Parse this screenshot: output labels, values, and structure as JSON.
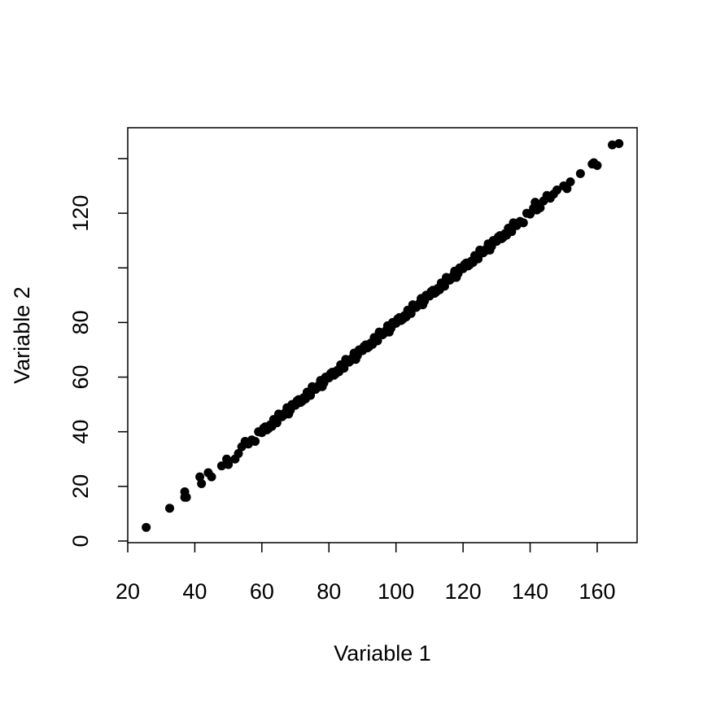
{
  "chart_data": {
    "type": "scatter",
    "x_label": "Variable 1",
    "y_label": "Variable 2",
    "xlim": [
      20,
      171.9
    ],
    "ylim": [
      -0.6,
      151.3
    ],
    "xticks": [
      20,
      40,
      60,
      80,
      100,
      120,
      140,
      160
    ],
    "yticks": [
      0,
      20,
      40,
      60,
      80,
      {
        "value": 100,
        "label": null
      },
      120,
      {
        "value": 140,
        "label": null
      }
    ],
    "color": "#000000",
    "x": [
      25.5,
      32.5,
      37,
      37,
      37.5,
      41.5,
      42,
      44,
      45,
      48,
      49.5,
      50,
      52,
      53,
      54,
      55,
      56,
      57,
      58,
      59,
      60,
      61,
      62,
      63,
      64,
      65,
      66,
      67,
      68,
      69,
      70,
      71,
      72,
      73,
      74,
      75,
      76,
      77,
      78,
      79,
      80,
      81,
      82,
      83,
      84,
      85,
      86,
      87,
      88,
      89,
      90,
      91,
      92,
      93,
      94,
      95,
      96,
      97,
      98,
      99,
      100,
      101,
      102,
      103,
      104,
      105,
      106,
      107,
      108,
      109,
      110,
      111,
      112,
      113,
      114,
      115,
      116,
      117,
      118,
      119,
      120,
      121,
      122,
      123,
      124,
      125,
      126,
      127,
      128,
      129,
      130,
      131,
      132,
      133,
      134,
      135,
      136,
      137,
      138,
      139,
      140,
      141,
      142,
      143,
      144,
      145,
      146,
      147,
      148,
      60.5,
      61.5,
      62.5,
      63.5,
      64.5,
      65.5,
      66.5,
      67.5,
      68.5,
      69.5,
      70.5,
      71.5,
      72.5,
      73.5,
      74.5,
      75.5,
      76.5,
      77.5,
      78.5,
      79.5,
      80.5,
      81.5,
      82.5,
      83.5,
      84.5,
      85.5,
      86.5,
      87.5,
      88.5,
      89.5,
      90.5,
      91.5,
      92.5,
      93.5,
      94.5,
      95.5,
      96.5,
      97.5,
      98.5,
      99.5,
      100.5,
      101.5,
      102.5,
      103.5,
      104.5,
      105.5,
      106.5,
      107.5,
      108.5,
      109.5,
      110.5,
      111.5,
      112.5,
      113.5,
      114.5,
      115.5,
      116.5,
      117.5,
      118.5,
      119.5,
      120.5,
      121.5,
      122.5,
      123.5,
      124.5,
      125.5,
      126.5,
      127.5,
      128.5,
      129.5,
      130.5,
      131.5,
      132.5,
      133.5,
      134.5,
      141.5,
      150,
      151,
      152,
      155,
      158.5,
      159,
      160,
      164.5,
      166.5
    ],
    "y": [
      5,
      12,
      18,
      16,
      16,
      23.5,
      21,
      25,
      23.5,
      27.5,
      30,
      28,
      30,
      32,
      34.5,
      36.5,
      35.5,
      37,
      36.5,
      40,
      39.7,
      41.8,
      41.2,
      42,
      44.5,
      46.5,
      45.5,
      47,
      46.5,
      50,
      49.7,
      51.8,
      51.2,
      52,
      54.5,
      56.5,
      55.5,
      57,
      56.5,
      60,
      59.7,
      61.8,
      61.2,
      62,
      64.5,
      66.5,
      65.5,
      67,
      66.5,
      70,
      69.7,
      71.8,
      71.2,
      72,
      74.5,
      76.5,
      75.5,
      77,
      76.5,
      80,
      79.7,
      81.8,
      81.2,
      82,
      84.5,
      86.5,
      85.5,
      87,
      86.5,
      90,
      89.7,
      91.8,
      91.2,
      92,
      94.5,
      96.5,
      95.5,
      97,
      96.5,
      100,
      99.7,
      101.8,
      101.2,
      102,
      104.5,
      106.5,
      105.5,
      107,
      106.5,
      110,
      109.7,
      111.8,
      111.2,
      112,
      114.5,
      116.5,
      115.5,
      117,
      116.5,
      120,
      119.7,
      121.8,
      121.2,
      122,
      124.5,
      126.5,
      125.5,
      127,
      128.5,
      41.3,
      40.7,
      42.5,
      44.5,
      43.3,
      45.9,
      46.1,
      48.8,
      47.9,
      49.7,
      51.3,
      50.7,
      52.5,
      54.5,
      53.3,
      55.9,
      56.1,
      58.8,
      57.9,
      59.7,
      61.3,
      60.7,
      62.5,
      64.5,
      63.3,
      65.9,
      66.1,
      68.8,
      67.9,
      69.7,
      71.3,
      70.7,
      72.5,
      74.5,
      73.3,
      75.9,
      76.1,
      78.8,
      77.9,
      79.7,
      81.3,
      80.7,
      82.5,
      84.5,
      83.3,
      85.9,
      86.1,
      88.8,
      87.9,
      89.7,
      91.3,
      90.7,
      92.5,
      94.5,
      93.3,
      95.9,
      96.1,
      98.8,
      97.9,
      99.7,
      101.3,
      100.7,
      102.5,
      104.5,
      103.3,
      105.9,
      106.1,
      108.8,
      107.9,
      109.7,
      111.3,
      110.7,
      112.5,
      114.5,
      113.3,
      124,
      130,
      129,
      131.5,
      134.5,
      138,
      138.5,
      137.5,
      145,
      145.5
    ]
  }
}
